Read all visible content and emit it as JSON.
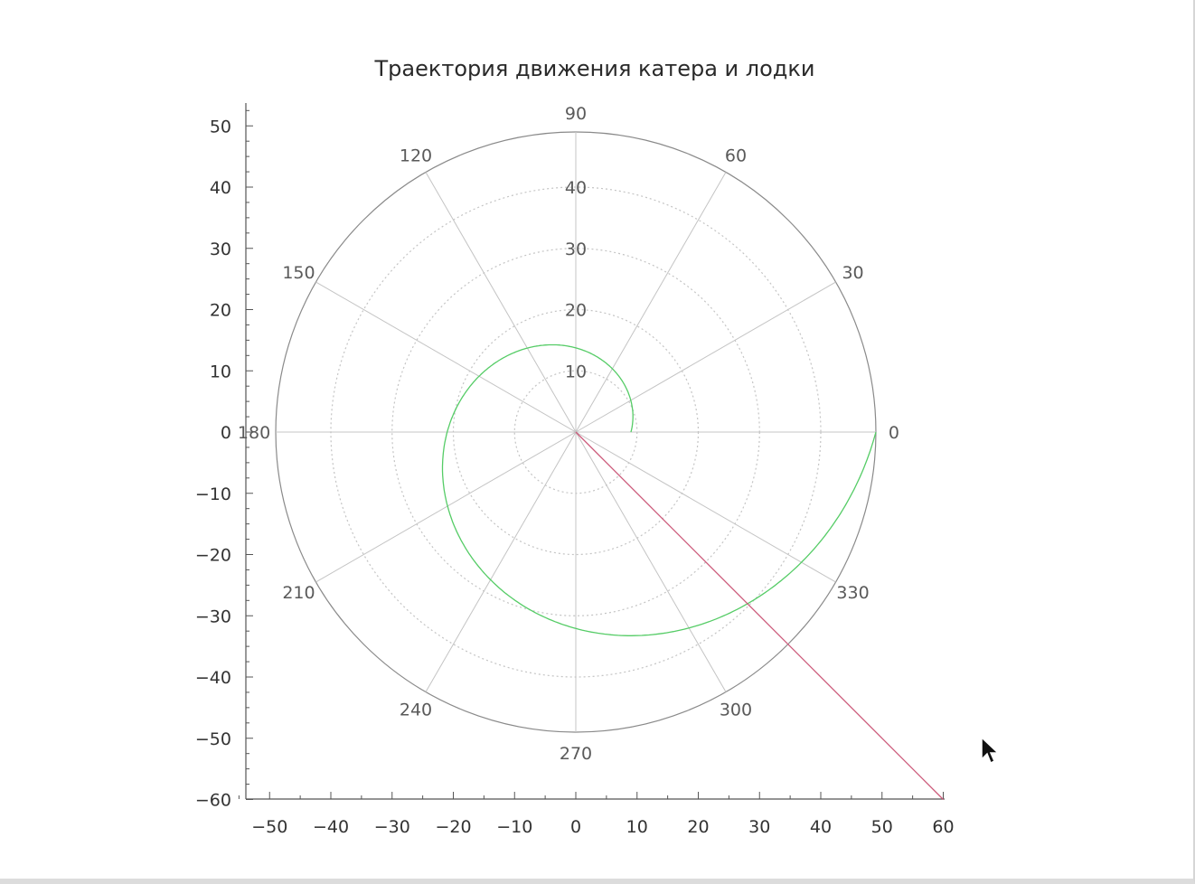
{
  "chart_data": {
    "type": "line",
    "projection": "polar",
    "title": "Траектория движения катера и лодки",
    "xlim": [
      -55,
      60
    ],
    "ylim": [
      -60,
      54
    ],
    "x_ticks": [
      -50,
      -40,
      -30,
      -20,
      -10,
      0,
      10,
      20,
      30,
      40,
      50,
      60
    ],
    "y_ticks": [
      50,
      40,
      30,
      20,
      10,
      0,
      -10,
      -20,
      -30,
      -40,
      -50,
      -60
    ],
    "r_max": 49,
    "r_ticks": [
      10,
      20,
      30,
      40
    ],
    "theta_ticks": [
      0,
      30,
      60,
      90,
      120,
      150,
      180,
      210,
      240,
      270,
      300,
      330
    ],
    "grid": true,
    "series": [
      {
        "color": "#55cc66",
        "form": "log-spiral",
        "r_start": 9,
        "theta_start_deg": 0,
        "theta_end_deg": 360,
        "r_end": 49
      },
      {
        "color": "#cc5a7a",
        "form": "polar-line",
        "theta_deg": -45,
        "r_start": 0,
        "r_end": 84.85
      }
    ],
    "colors": {
      "axis": "#555555",
      "outer_circle": "#8a8a8a",
      "grid": "#c4c4c4"
    }
  }
}
